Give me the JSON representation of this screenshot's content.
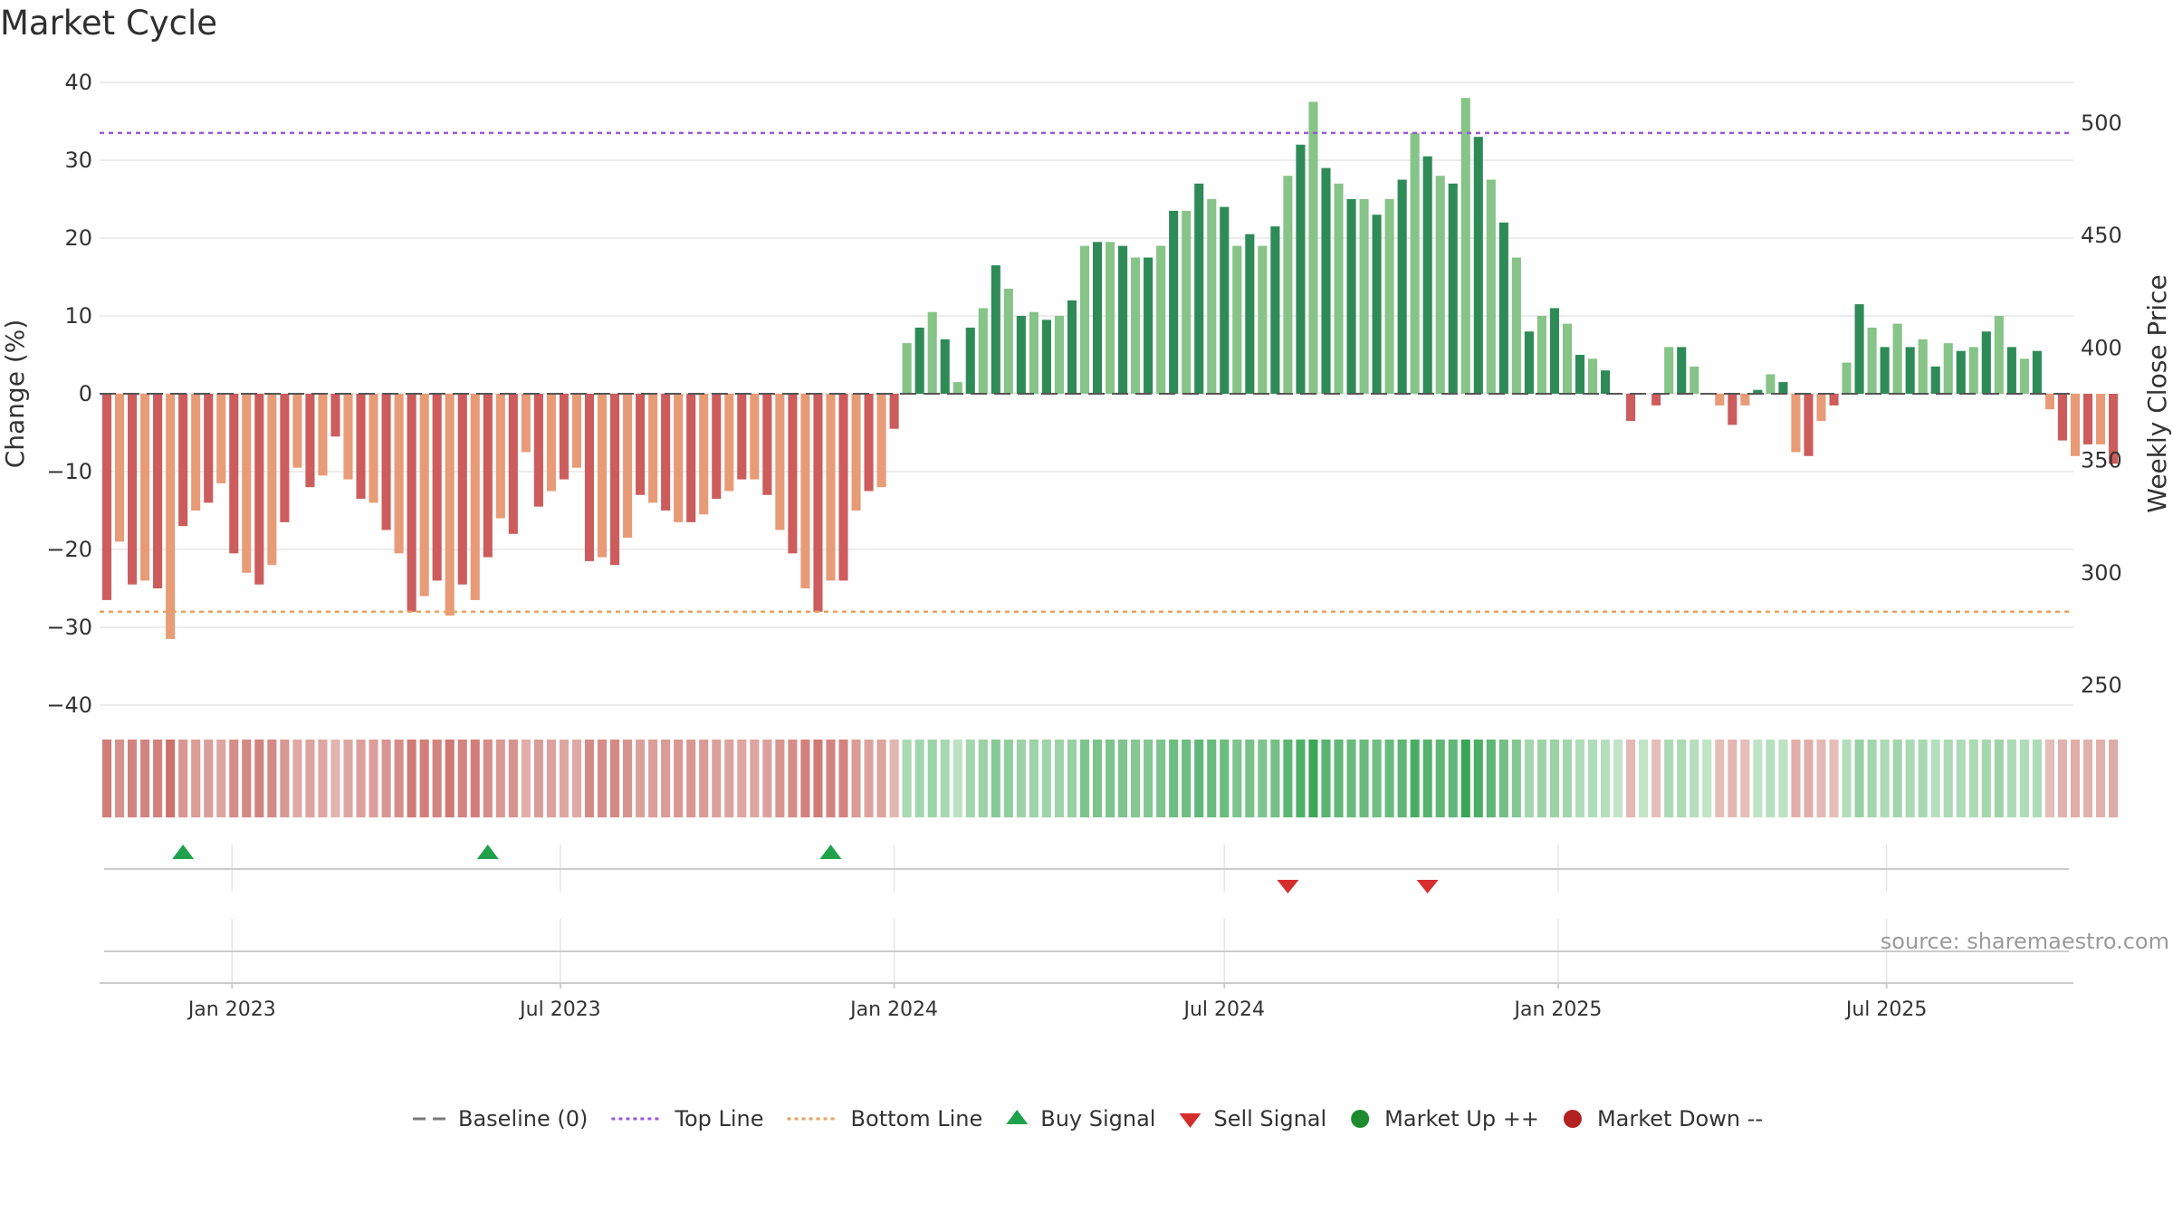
{
  "chart_data": {
    "type": "bar",
    "title": "Market Cycle",
    "ylabel": "Change (%)",
    "y2label": "Weekly Close Price",
    "ylim": [
      -40,
      40
    ],
    "y2lim": [
      250,
      500
    ],
    "yticks": [
      40,
      30,
      20,
      10,
      0,
      -10,
      -20,
      -30,
      -40
    ],
    "yticklabels": [
      "40",
      "30",
      "20",
      "10",
      "0",
      "−10",
      "−20",
      "−30",
      "−40"
    ],
    "y2ticks": [
      500,
      450,
      400,
      350,
      300,
      250
    ],
    "y2ticklabels": [
      "500",
      "450",
      "400",
      "350",
      "300",
      "250"
    ],
    "xticks": [
      "2023-01-01",
      "2023-07-01",
      "2024-01-01",
      "2024-07-01",
      "2025-01-01",
      "2025-07-01"
    ],
    "xticklabels": [
      "Jan 2023",
      "Jul 2023",
      "Jan 2024",
      "Jul 2024",
      "Jan 2025",
      "Jul 2025"
    ],
    "xlim": [
      "2022-10-20",
      "2025-10-12"
    ],
    "first_week": "2022-10-24",
    "grid": true,
    "top_line": 33.5,
    "bottom_line": -28,
    "series": [
      {
        "name": "Change (%)",
        "values": [
          -26.5,
          -19,
          -24.5,
          -24,
          -25,
          -31.5,
          -17,
          -15,
          -14,
          -11.5,
          -20.5,
          -23,
          -24.5,
          -22,
          -16.5,
          -9.5,
          -12,
          -10.5,
          -5.5,
          -11,
          -13.5,
          -14,
          -17.5,
          -20.5,
          -28,
          -26,
          -24,
          -28.5,
          -24.5,
          -26.5,
          -21,
          -16,
          -18,
          -7.5,
          -14.5,
          -12.5,
          -11,
          -9.5,
          -21.5,
          -21,
          -22,
          -18.5,
          -13,
          -14,
          -15,
          -16.5,
          -16.5,
          -15.5,
          -13.5,
          -12.5,
          -11,
          -11,
          -13,
          -17.5,
          -20.5,
          -25,
          -28,
          -24,
          -24,
          -15,
          -12.5,
          -12,
          -4.5,
          6.5,
          8.5,
          10.5,
          7,
          1.5,
          8.5,
          11,
          16.5,
          13.5,
          10,
          10.5,
          9.5,
          10,
          12,
          19,
          19.5,
          19.5,
          19,
          17.5,
          17.5,
          19,
          23.5,
          23.5,
          27,
          25,
          24,
          19,
          20.5,
          19,
          21.5,
          28,
          32,
          37.5,
          29,
          27,
          25,
          25,
          23,
          25,
          27.5,
          33.5,
          30.5,
          28,
          27,
          38,
          33,
          27.5,
          22,
          17.5,
          8,
          10,
          11,
          9,
          5,
          4.5,
          3,
          0,
          -3.5,
          0,
          -1.5,
          6,
          6,
          3.5,
          0,
          -1.5,
          -4,
          -1.5,
          0.5,
          2.5,
          1.5,
          -7.5,
          -8,
          -3.5,
          -1.5,
          4,
          11.5,
          8.5,
          6,
          9,
          6,
          7,
          3.5,
          6.5,
          5.5,
          6,
          8,
          10,
          6,
          4.5,
          5.5,
          -2,
          -6,
          -8,
          -6.5,
          -6.5,
          -9
        ]
      }
    ],
    "buy_signals": [
      "2022-12-05",
      "2023-05-22",
      "2023-11-27"
    ],
    "sell_signals": [
      "2024-08-05",
      "2024-10-21"
    ],
    "legend": {
      "position": "bottom",
      "items": [
        {
          "label": "Baseline (0)",
          "symbol": "dash",
          "color": "#7a7a7a"
        },
        {
          "label": "Top Line",
          "symbol": "dot",
          "color": "#9b59d6"
        },
        {
          "label": "Bottom Line",
          "symbol": "dot",
          "color": "#e8a25e"
        },
        {
          "label": "Buy Signal",
          "symbol": "triangle-up",
          "color": "#1fa24b"
        },
        {
          "label": "Sell Signal",
          "symbol": "triangle-down",
          "color": "#d62d2d"
        },
        {
          "label": "Market Up ++",
          "symbol": "circle",
          "color": "#1e8c2e"
        },
        {
          "label": "Market Down --",
          "symbol": "circle",
          "color": "#b22222"
        }
      ]
    },
    "source": "source: sharemaestro.com"
  }
}
